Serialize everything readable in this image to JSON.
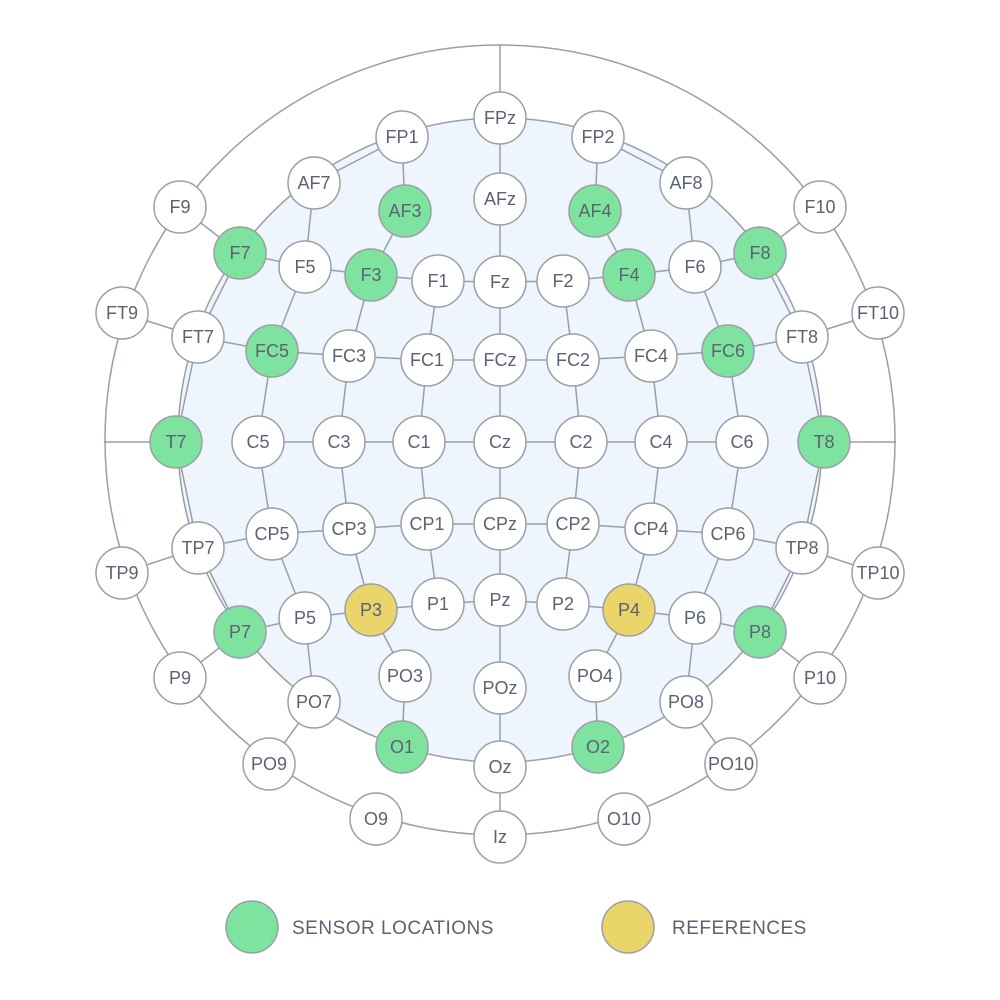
{
  "colors": {
    "background": "#ffffff",
    "head_fill": "#eef5fd",
    "line": "#9a9ea8",
    "normal_fill": "#ffffff",
    "sensor_fill": "#7fe3a0",
    "reference_fill": "#ead56b",
    "label": "#5b6273"
  },
  "legend": {
    "sensor": "SENSOR LOCATIONS",
    "reference": "REFERENCES"
  },
  "electrodes": [
    {
      "id": "FPz",
      "type": "normal"
    },
    {
      "id": "FP1",
      "type": "normal"
    },
    {
      "id": "FP2",
      "type": "normal"
    },
    {
      "id": "AF7",
      "type": "normal"
    },
    {
      "id": "AF3",
      "type": "sensor"
    },
    {
      "id": "AFz",
      "type": "normal"
    },
    {
      "id": "AF4",
      "type": "sensor"
    },
    {
      "id": "AF8",
      "type": "normal"
    },
    {
      "id": "F9",
      "type": "normal"
    },
    {
      "id": "F7",
      "type": "sensor"
    },
    {
      "id": "F5",
      "type": "normal"
    },
    {
      "id": "F3",
      "type": "sensor"
    },
    {
      "id": "F1",
      "type": "normal"
    },
    {
      "id": "Fz",
      "type": "normal"
    },
    {
      "id": "F2",
      "type": "normal"
    },
    {
      "id": "F4",
      "type": "sensor"
    },
    {
      "id": "F6",
      "type": "normal"
    },
    {
      "id": "F8",
      "type": "sensor"
    },
    {
      "id": "F10",
      "type": "normal"
    },
    {
      "id": "FT9",
      "type": "normal"
    },
    {
      "id": "FT7",
      "type": "normal"
    },
    {
      "id": "FC5",
      "type": "sensor"
    },
    {
      "id": "FC3",
      "type": "normal"
    },
    {
      "id": "FC1",
      "type": "normal"
    },
    {
      "id": "FCz",
      "type": "normal"
    },
    {
      "id": "FC2",
      "type": "normal"
    },
    {
      "id": "FC4",
      "type": "normal"
    },
    {
      "id": "FC6",
      "type": "sensor"
    },
    {
      "id": "FT8",
      "type": "normal"
    },
    {
      "id": "FT10",
      "type": "normal"
    },
    {
      "id": "T7",
      "type": "sensor"
    },
    {
      "id": "C5",
      "type": "normal"
    },
    {
      "id": "C3",
      "type": "normal"
    },
    {
      "id": "C1",
      "type": "normal"
    },
    {
      "id": "Cz",
      "type": "normal"
    },
    {
      "id": "C2",
      "type": "normal"
    },
    {
      "id": "C4",
      "type": "normal"
    },
    {
      "id": "C6",
      "type": "normal"
    },
    {
      "id": "T8",
      "type": "sensor"
    },
    {
      "id": "TP9",
      "type": "normal"
    },
    {
      "id": "TP7",
      "type": "normal"
    },
    {
      "id": "CP5",
      "type": "normal"
    },
    {
      "id": "CP3",
      "type": "normal"
    },
    {
      "id": "CP1",
      "type": "normal"
    },
    {
      "id": "CPz",
      "type": "normal"
    },
    {
      "id": "CP2",
      "type": "normal"
    },
    {
      "id": "CP4",
      "type": "normal"
    },
    {
      "id": "CP6",
      "type": "normal"
    },
    {
      "id": "TP8",
      "type": "normal"
    },
    {
      "id": "TP10",
      "type": "normal"
    },
    {
      "id": "P9",
      "type": "normal"
    },
    {
      "id": "P7",
      "type": "sensor"
    },
    {
      "id": "P5",
      "type": "normal"
    },
    {
      "id": "P3",
      "type": "reference"
    },
    {
      "id": "P1",
      "type": "normal"
    },
    {
      "id": "Pz",
      "type": "normal"
    },
    {
      "id": "P2",
      "type": "normal"
    },
    {
      "id": "P4",
      "type": "reference"
    },
    {
      "id": "P6",
      "type": "normal"
    },
    {
      "id": "P8",
      "type": "sensor"
    },
    {
      "id": "P10",
      "type": "normal"
    },
    {
      "id": "PO9",
      "type": "normal"
    },
    {
      "id": "PO7",
      "type": "normal"
    },
    {
      "id": "PO3",
      "type": "normal"
    },
    {
      "id": "POz",
      "type": "normal"
    },
    {
      "id": "PO4",
      "type": "normal"
    },
    {
      "id": "PO8",
      "type": "normal"
    },
    {
      "id": "PO10",
      "type": "normal"
    },
    {
      "id": "O9",
      "type": "normal"
    },
    {
      "id": "O1",
      "type": "sensor"
    },
    {
      "id": "Oz",
      "type": "normal"
    },
    {
      "id": "O2",
      "type": "sensor"
    },
    {
      "id": "O10",
      "type": "normal"
    },
    {
      "id": "Iz",
      "type": "normal"
    }
  ]
}
